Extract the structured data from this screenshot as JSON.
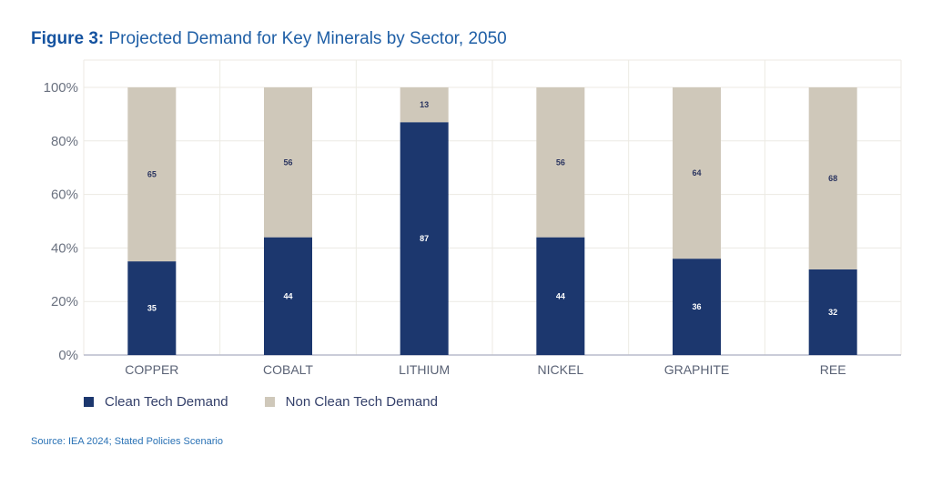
{
  "title_bold": "Figure 3:",
  "title_rest": " Projected Demand for Key Minerals by Sector, 2050",
  "source": "Source: IEA 2024; Stated Policies Scenario",
  "chart_data": {
    "type": "bar",
    "stacked": true,
    "categories": [
      "COPPER",
      "COBALT",
      "LITHIUM",
      "NICKEL",
      "GRAPHITE",
      "REE"
    ],
    "series": [
      {
        "name": "Clean Tech Demand",
        "values": [
          35,
          44,
          87,
          44,
          36,
          32
        ],
        "color": "#1c376e"
      },
      {
        "name": "Non Clean Tech Demand",
        "values": [
          65,
          56,
          13,
          56,
          64,
          68
        ],
        "color": "#cfc8ba"
      }
    ],
    "yticks": [
      "0%",
      "20%",
      "40%",
      "60%",
      "80%",
      "100%"
    ],
    "ylim": [
      0,
      100
    ],
    "grid": true,
    "legend": "bottom-left"
  }
}
